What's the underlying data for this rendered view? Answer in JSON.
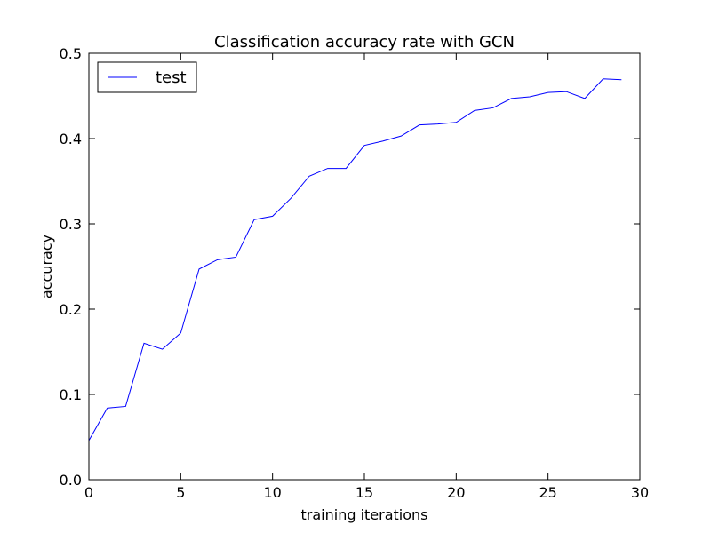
{
  "chart_data": {
    "type": "line",
    "title": "Classification accuracy rate with GCN",
    "xlabel": "training iterations",
    "ylabel": "accuracy",
    "xlim": [
      0,
      30
    ],
    "ylim": [
      0,
      0.5
    ],
    "xticks": [
      0,
      5,
      10,
      15,
      20,
      25,
      30
    ],
    "yticks": [
      0.0,
      0.1,
      0.2,
      0.3,
      0.4,
      0.5
    ],
    "xtick_labels": [
      "0",
      "5",
      "10",
      "15",
      "20",
      "25",
      "30"
    ],
    "ytick_labels": [
      "0.0",
      "0.1",
      "0.2",
      "0.3",
      "0.4",
      "0.5"
    ],
    "grid": false,
    "legend_position": "top-left",
    "series": [
      {
        "name": "test",
        "color": "#0000ff",
        "x": [
          0,
          1,
          2,
          3,
          4,
          5,
          6,
          7,
          8,
          9,
          10,
          11,
          12,
          13,
          14,
          15,
          16,
          17,
          18,
          19,
          20,
          21,
          22,
          23,
          24,
          25,
          26,
          27,
          28,
          29
        ],
        "y": [
          0.046,
          0.084,
          0.086,
          0.16,
          0.153,
          0.172,
          0.247,
          0.258,
          0.261,
          0.305,
          0.309,
          0.33,
          0.356,
          0.365,
          0.365,
          0.392,
          0.397,
          0.403,
          0.416,
          0.417,
          0.419,
          0.433,
          0.436,
          0.447,
          0.449,
          0.454,
          0.455,
          0.447,
          0.47,
          0.469
        ]
      }
    ]
  }
}
